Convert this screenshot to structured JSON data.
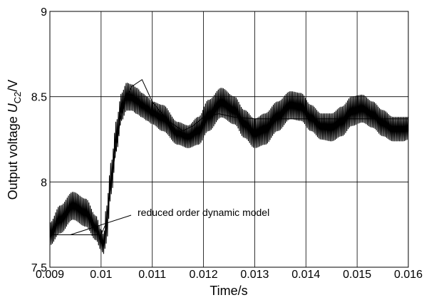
{
  "chart_data": {
    "type": "line",
    "title": "",
    "xlabel": "Time/s",
    "ylabel": {
      "prefix": "Output voltage ",
      "symbol": "U",
      "subscript": "C2",
      "suffix": "/V"
    },
    "xlim": [
      0.009,
      0.016
    ],
    "ylim": [
      7.5,
      9.0
    ],
    "xticks": [
      0.009,
      0.01,
      0.011,
      0.012,
      0.013,
      0.014,
      0.015,
      0.016
    ],
    "xtick_labels": [
      "0.009",
      "0.01",
      "0.011",
      "0.012",
      "0.013",
      "0.014",
      "0.015",
      "0.016"
    ],
    "yticks": [
      7.5,
      8.0,
      8.5,
      9.0
    ],
    "ytick_labels": [
      "7.5",
      "8",
      "8.5",
      "9"
    ],
    "grid": true,
    "annotations": [
      {
        "text": "reduced order dynamic model",
        "points_to": {
          "x": 0.0094,
          "y": 7.69
        }
      }
    ],
    "series": [
      {
        "kind": "switching-ripple-envelope",
        "ripple_period": 2.5e-05,
        "upper": {
          "x": [
            0.009,
            0.0092,
            0.00945,
            0.0097,
            0.0099,
            0.01,
            0.01005,
            0.0101,
            0.0102,
            0.0103,
            0.0104,
            0.0105,
            0.0106,
            0.0107,
            0.0108,
            0.0109,
            0.011,
            0.0112,
            0.0115,
            0.0117,
            0.0119,
            0.0121,
            0.01235,
            0.0126,
            0.0128,
            0.013,
            0.0132,
            0.01345,
            0.0137,
            0.0139,
            0.0141,
            0.0143,
            0.0145,
            0.0147,
            0.0149,
            0.0151,
            0.0153,
            0.0155,
            0.0157,
            0.0159,
            0.016
          ],
          "y": [
            7.76,
            7.86,
            7.94,
            7.9,
            7.8,
            7.72,
            7.69,
            7.85,
            8.12,
            8.36,
            8.52,
            8.58,
            8.57,
            8.55,
            8.52,
            8.5,
            8.47,
            8.45,
            8.35,
            8.33,
            8.38,
            8.48,
            8.55,
            8.5,
            8.42,
            8.37,
            8.4,
            8.47,
            8.53,
            8.52,
            8.45,
            8.4,
            8.4,
            8.44,
            8.5,
            8.51,
            8.47,
            8.42,
            8.38,
            8.38,
            8.38
          ]
        },
        "lower": {
          "x": [
            0.009,
            0.0092,
            0.00945,
            0.0097,
            0.0099,
            0.01,
            0.01005,
            0.0101,
            0.0102,
            0.0103,
            0.0104,
            0.0105,
            0.0106,
            0.0107,
            0.0108,
            0.0109,
            0.011,
            0.0112,
            0.0115,
            0.0117,
            0.0119,
            0.0121,
            0.01235,
            0.0126,
            0.0128,
            0.013,
            0.0132,
            0.01345,
            0.0137,
            0.0139,
            0.0141,
            0.0143,
            0.0145,
            0.0147,
            0.0149,
            0.0151,
            0.0153,
            0.0155,
            0.0157,
            0.0159,
            0.016
          ],
          "y": [
            7.63,
            7.7,
            7.78,
            7.74,
            7.66,
            7.6,
            7.58,
            7.64,
            7.93,
            8.18,
            8.36,
            8.42,
            8.42,
            8.4,
            8.38,
            8.36,
            8.34,
            8.3,
            8.22,
            8.2,
            8.22,
            8.3,
            8.38,
            8.34,
            8.26,
            8.2,
            8.22,
            8.3,
            8.37,
            8.36,
            8.3,
            8.25,
            8.24,
            8.27,
            8.33,
            8.35,
            8.32,
            8.27,
            8.24,
            8.24,
            8.25
          ]
        }
      },
      {
        "kind": "model-line",
        "x": [
          0.009,
          0.01,
          0.0101,
          0.0102,
          0.0103,
          0.0104,
          0.0105,
          0.0106,
          0.0108,
          0.011,
          0.0113,
          0.0116,
          0.0118,
          0.012,
          0.0123,
          0.0126,
          0.013,
          0.0135,
          0.014,
          0.0145,
          0.015,
          0.0155,
          0.016
        ],
        "y": [
          7.69,
          7.69,
          7.76,
          8.0,
          8.22,
          8.4,
          8.5,
          8.56,
          8.6,
          8.47,
          8.36,
          8.3,
          8.33,
          8.38,
          8.4,
          8.38,
          8.37,
          8.37,
          8.37,
          8.37,
          8.37,
          8.37,
          8.37
        ]
      }
    ]
  }
}
